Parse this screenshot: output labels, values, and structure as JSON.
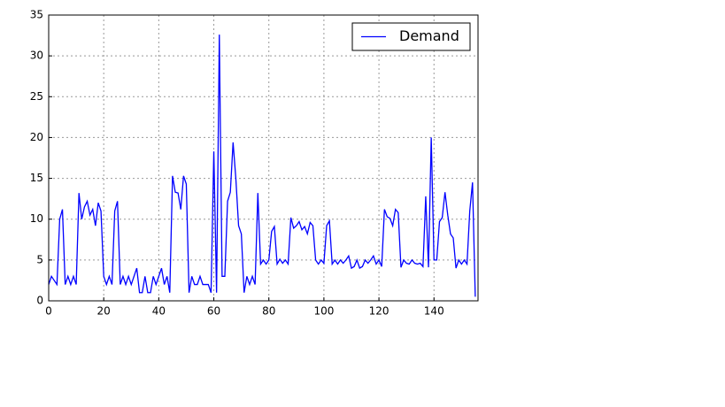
{
  "chart_data": {
    "type": "line",
    "x": [
      0,
      1,
      2,
      3,
      4,
      5,
      6,
      7,
      8,
      9,
      10,
      11,
      12,
      13,
      14,
      15,
      16,
      17,
      18,
      19,
      20,
      21,
      22,
      23,
      24,
      25,
      26,
      27,
      28,
      29,
      30,
      31,
      32,
      33,
      34,
      35,
      36,
      37,
      38,
      39,
      40,
      41,
      42,
      43,
      44,
      45,
      46,
      47,
      48,
      49,
      50,
      51,
      52,
      53,
      54,
      55,
      56,
      57,
      58,
      59,
      60,
      61,
      62,
      63,
      64,
      65,
      66,
      67,
      68,
      69,
      70,
      71,
      72,
      73,
      74,
      75,
      76,
      77,
      78,
      79,
      80,
      81,
      82,
      83,
      84,
      85,
      86,
      87,
      88,
      89,
      90,
      91,
      92,
      93,
      94,
      95,
      96,
      97,
      98,
      99,
      100,
      101,
      102,
      103,
      104,
      105,
      106,
      107,
      108,
      109,
      110,
      111,
      112,
      113,
      114,
      115,
      116,
      117,
      118,
      119,
      120,
      121,
      122,
      123,
      124,
      125,
      126,
      127,
      128,
      129,
      130,
      131,
      132,
      133,
      134,
      135,
      136,
      137,
      138,
      139,
      140,
      141,
      142,
      143,
      144,
      145,
      146,
      147,
      148,
      149,
      150,
      151,
      152,
      153,
      154,
      155
    ],
    "series": [
      {
        "name": "Demand",
        "color": "#0000ff",
        "values": [
          2,
          3,
          2.5,
          2,
          10,
          11.2,
          2,
          3,
          2,
          3,
          2,
          13.2,
          10,
          11.5,
          12.2,
          10.5,
          11.2,
          9.2,
          12,
          11,
          3,
          2,
          3,
          2,
          11,
          12.2,
          2,
          3,
          2,
          3,
          2,
          3,
          4,
          1,
          1,
          3,
          1,
          1,
          3,
          2,
          3,
          4,
          2,
          3,
          1,
          15.3,
          13.3,
          13.2,
          11.2,
          15.3,
          14.3,
          1,
          3,
          2,
          2,
          3,
          2,
          2,
          2,
          1,
          18.3,
          1,
          32.6,
          3,
          3,
          12.2,
          13.3,
          19.4,
          15,
          9.2,
          8.2,
          1,
          3,
          2,
          3,
          2,
          13.2,
          4.5,
          5,
          4.5,
          5,
          8.5,
          9.1,
          4.5,
          5.1,
          4.6,
          5,
          4.5,
          10.2,
          8.9,
          9.2,
          9.7,
          8.7,
          9.1,
          8.2,
          9.6,
          9.2,
          5,
          4.5,
          5,
          4.6,
          9.2,
          9.8,
          4.5,
          5,
          4.5,
          5,
          4.6,
          5,
          5.5,
          4,
          4.2,
          5,
          4,
          4.2,
          5,
          4.6,
          5,
          5.5,
          4.5,
          5,
          4.2,
          11.2,
          10.3,
          10.1,
          9.2,
          11.2,
          10.8,
          4.1,
          5,
          4.6,
          4.5,
          5,
          4.6,
          4.5,
          4.6,
          4.2,
          12.8,
          4.1,
          20,
          5,
          5,
          9.7,
          10.2,
          13.3,
          10.5,
          8.2,
          7.7,
          4,
          5,
          4.5,
          5,
          4.5,
          11,
          14.5,
          0.5
        ]
      }
    ],
    "xlim": [
      0,
      156
    ],
    "xticks": [
      0,
      20,
      40,
      60,
      80,
      100,
      120,
      140
    ],
    "ylim": [
      0,
      35
    ],
    "yticks": [
      0,
      5,
      10,
      15,
      20,
      25,
      30,
      35
    ],
    "grid": true,
    "legend": "upper right"
  }
}
